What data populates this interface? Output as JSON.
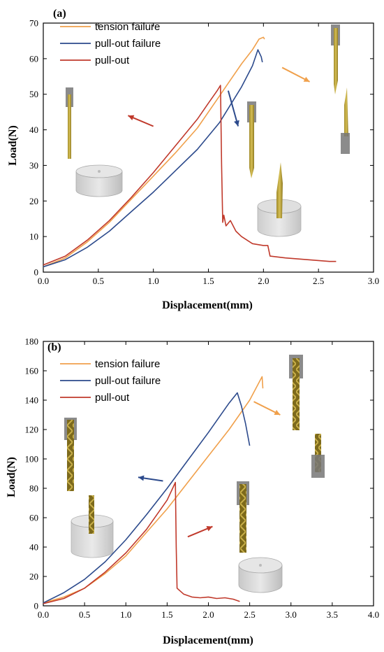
{
  "chart_data": [
    {
      "type": "line",
      "panel_label": "(a)",
      "xlabel": "Displacement(mm)",
      "ylabel": "Load(N)",
      "xlim": [
        0.0,
        3.0
      ],
      "ylim": [
        0,
        70
      ],
      "xticks": [
        0.0,
        0.5,
        1.0,
        1.5,
        2.0,
        2.5,
        3.0
      ],
      "xtick_labels": [
        "0.0",
        "0.5",
        "1.0",
        "1.5",
        "2.0",
        "2.5",
        "3.0"
      ],
      "yticks": [
        0,
        10,
        20,
        30,
        40,
        50,
        60,
        70
      ],
      "ytick_labels": [
        "0",
        "10",
        "20",
        "30",
        "40",
        "50",
        "60",
        "70"
      ],
      "legend_position": "top-left",
      "series": [
        {
          "name": "tension failure",
          "color": "#f0a04b",
          "points": [
            [
              0.0,
              1.5
            ],
            [
              0.2,
              4.0
            ],
            [
              0.4,
              8.5
            ],
            [
              0.6,
              14.0
            ],
            [
              0.8,
              20.5
            ],
            [
              1.0,
              27.0
            ],
            [
              1.2,
              33.5
            ],
            [
              1.4,
              40.5
            ],
            [
              1.6,
              49.5
            ],
            [
              1.7,
              54.0
            ],
            [
              1.8,
              58.5
            ],
            [
              1.9,
              62.5
            ],
            [
              1.96,
              65.5
            ],
            [
              2.0,
              66.0
            ],
            [
              2.01,
              65.5
            ]
          ]
        },
        {
          "name": "pull-out failure",
          "color": "#2c4a8c",
          "points": [
            [
              0.0,
              1.5
            ],
            [
              0.2,
              3.5
            ],
            [
              0.4,
              7.0
            ],
            [
              0.6,
              11.5
            ],
            [
              0.8,
              17.0
            ],
            [
              1.0,
              22.5
            ],
            [
              1.2,
              28.5
            ],
            [
              1.4,
              34.5
            ],
            [
              1.6,
              42.0
            ],
            [
              1.8,
              52.0
            ],
            [
              1.9,
              58.0
            ],
            [
              1.95,
              62.5
            ],
            [
              1.98,
              60.5
            ],
            [
              1.99,
              59.0
            ]
          ]
        },
        {
          "name": "pull-out",
          "color": "#c0392b",
          "points": [
            [
              0.0,
              2.0
            ],
            [
              0.2,
              4.5
            ],
            [
              0.4,
              9.0
            ],
            [
              0.6,
              14.5
            ],
            [
              0.8,
              21.0
            ],
            [
              1.0,
              28.0
            ],
            [
              1.2,
              35.5
            ],
            [
              1.4,
              43.0
            ],
            [
              1.5,
              47.5
            ],
            [
              1.58,
              51.0
            ],
            [
              1.61,
              52.5
            ],
            [
              1.62,
              30.0
            ],
            [
              1.63,
              14.0
            ],
            [
              1.64,
              16.0
            ],
            [
              1.66,
              13.0
            ],
            [
              1.7,
              14.5
            ],
            [
              1.75,
              11.5
            ],
            [
              1.8,
              10.0
            ],
            [
              1.9,
              8.0
            ],
            [
              2.0,
              7.5
            ],
            [
              2.04,
              7.5
            ],
            [
              2.06,
              4.5
            ],
            [
              2.2,
              4.0
            ],
            [
              2.4,
              3.5
            ],
            [
              2.6,
              3.0
            ],
            [
              2.66,
              3.0
            ]
          ]
        }
      ],
      "annotation_arrows": [
        {
          "color": "#c0392b",
          "from": [
            1.0,
            41.0
          ],
          "to": [
            0.77,
            44.0
          ]
        },
        {
          "color": "#2c4a8c",
          "from": [
            1.68,
            51.0
          ],
          "to": [
            1.77,
            41.0
          ]
        },
        {
          "color": "#f0a04b",
          "from": [
            2.17,
            57.5
          ],
          "to": [
            2.42,
            53.5
          ]
        }
      ]
    },
    {
      "type": "line",
      "panel_label": "(b)",
      "xlabel": "Displacement(mm)",
      "ylabel": "Load(N)",
      "xlim": [
        0.0,
        4.0
      ],
      "ylim": [
        0,
        180
      ],
      "xticks": [
        0.0,
        0.5,
        1.0,
        1.5,
        2.0,
        2.5,
        3.0,
        3.5,
        4.0
      ],
      "xtick_labels": [
        "0.0",
        "0.5",
        "1.0",
        "1.5",
        "2.0",
        "2.5",
        "3.0",
        "3.5",
        "4.0"
      ],
      "yticks": [
        0,
        20,
        40,
        60,
        80,
        100,
        120,
        140,
        160,
        180
      ],
      "ytick_labels": [
        "0",
        "20",
        "40",
        "60",
        "80",
        "100",
        "120",
        "140",
        "160",
        "180"
      ],
      "legend_position": "top-left",
      "series": [
        {
          "name": "tension failure",
          "color": "#f0a04b",
          "points": [
            [
              0.0,
              2.0
            ],
            [
              0.25,
              6.0
            ],
            [
              0.5,
              12.0
            ],
            [
              0.75,
              22.0
            ],
            [
              1.0,
              34.0
            ],
            [
              1.25,
              50.0
            ],
            [
              1.5,
              66.0
            ],
            [
              1.75,
              84.0
            ],
            [
              2.0,
              102.0
            ],
            [
              2.25,
              120.0
            ],
            [
              2.5,
              140.0
            ],
            [
              2.65,
              156.0
            ],
            [
              2.66,
              148.0
            ]
          ]
        },
        {
          "name": "pull-out failure",
          "color": "#2c4a8c",
          "points": [
            [
              0.0,
              2.0
            ],
            [
              0.25,
              9.0
            ],
            [
              0.5,
              18.0
            ],
            [
              0.75,
              30.0
            ],
            [
              1.0,
              45.0
            ],
            [
              1.25,
              62.0
            ],
            [
              1.5,
              80.0
            ],
            [
              1.75,
              99.0
            ],
            [
              2.0,
              118.0
            ],
            [
              2.25,
              138.0
            ],
            [
              2.35,
              145.0
            ],
            [
              2.4,
              136.0
            ],
            [
              2.45,
              124.0
            ],
            [
              2.5,
              109.0
            ]
          ]
        },
        {
          "name": "pull-out",
          "color": "#c0392b",
          "points": [
            [
              0.0,
              1.5
            ],
            [
              0.25,
              5.0
            ],
            [
              0.5,
              12.0
            ],
            [
              0.75,
              23.0
            ],
            [
              1.0,
              36.0
            ],
            [
              1.25,
              52.0
            ],
            [
              1.5,
              72.0
            ],
            [
              1.6,
              84.0
            ],
            [
              1.61,
              40.0
            ],
            [
              1.62,
              12.0
            ],
            [
              1.7,
              8.0
            ],
            [
              1.8,
              6.0
            ],
            [
              1.9,
              5.5
            ],
            [
              2.0,
              6.0
            ],
            [
              2.1,
              5.0
            ],
            [
              2.2,
              5.5
            ],
            [
              2.3,
              4.5
            ],
            [
              2.38,
              3.0
            ]
          ]
        }
      ],
      "annotation_arrows": [
        {
          "color": "#2c4a8c",
          "from": [
            1.45,
            85.0
          ],
          "to": [
            1.15,
            87.5
          ]
        },
        {
          "color": "#c0392b",
          "from": [
            1.75,
            47.0
          ],
          "to": [
            2.05,
            54.0
          ]
        },
        {
          "color": "#f0a04b",
          "from": [
            2.55,
            139.0
          ],
          "to": [
            2.87,
            130.0
          ]
        }
      ]
    }
  ]
}
